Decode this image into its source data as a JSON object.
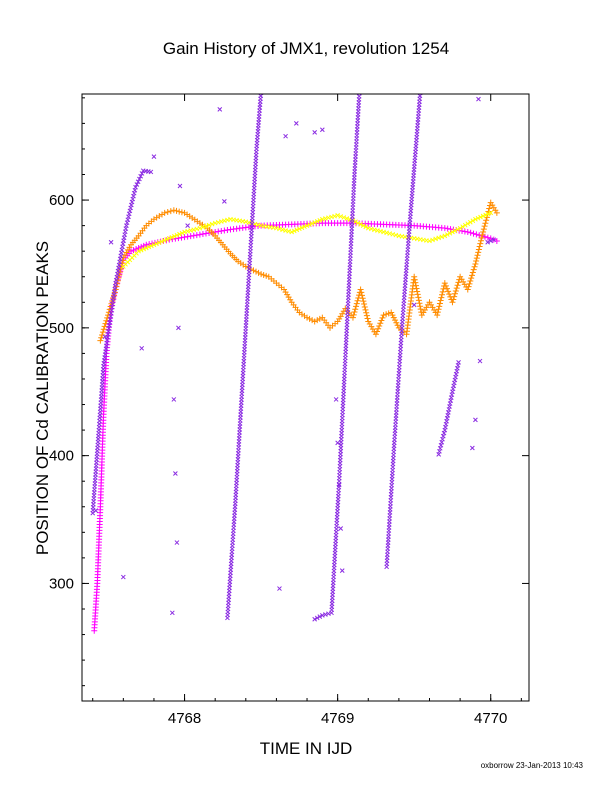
{
  "chart_data": {
    "type": "scatter",
    "title": "Gain History of JMX1, revolution 1254",
    "xlabel": "TIME IN IJD",
    "ylabel": "POSITION OF Cd CALIBRATION PEAKS",
    "xlim": [
      4767.33,
      4770.25
    ],
    "ylim": [
      208,
      683
    ],
    "x_ticks": [
      4768,
      4769,
      4770
    ],
    "x_tick_labels": [
      "4768",
      "4769",
      "4770"
    ],
    "y_ticks": [
      300,
      400,
      500,
      600
    ],
    "y_tick_labels": [
      "300",
      "400",
      "500",
      "600"
    ],
    "grid": false,
    "legend": "none",
    "footer": "oxborrow 23-Jan-2013 10:43",
    "series": [
      {
        "color": "#ff00ff",
        "marker": "+",
        "segments": [
          [
            [
              4767.41,
              263
            ],
            [
              4767.43,
              300
            ],
            [
              4767.45,
              360
            ],
            [
              4767.47,
              430
            ],
            [
              4767.49,
              480
            ],
            [
              4767.51,
              505
            ],
            [
              4767.53,
              520
            ],
            [
              4767.55,
              530
            ],
            [
              4767.57,
              540
            ],
            [
              4767.6,
              553
            ],
            [
              4767.65,
              560
            ],
            [
              4767.75,
              565
            ],
            [
              4767.9,
              569
            ],
            [
              4768.1,
              573
            ],
            [
              4768.3,
              577
            ],
            [
              4768.5,
              580
            ],
            [
              4768.7,
              581
            ],
            [
              4768.9,
              582
            ],
            [
              4769.1,
              582
            ],
            [
              4769.3,
              581
            ],
            [
              4769.5,
              580
            ],
            [
              4769.7,
              578
            ],
            [
              4769.85,
              575
            ],
            [
              4770.0,
              570
            ],
            [
              4770.04,
              568
            ]
          ]
        ]
      },
      {
        "color": "#ff8c00",
        "marker": "+",
        "segments": [
          [
            [
              4767.45,
              490
            ],
            [
              4767.5,
              510
            ],
            [
              4767.55,
              530
            ],
            [
              4767.6,
              555
            ],
            [
              4767.65,
              565
            ],
            [
              4767.7,
              572
            ],
            [
              4767.75,
              580
            ],
            [
              4767.8,
              585
            ],
            [
              4767.87,
              590
            ],
            [
              4767.93,
              592
            ],
            [
              4768.0,
              590
            ],
            [
              4768.05,
              586
            ],
            [
              4768.1,
              582
            ],
            [
              4768.15,
              578
            ],
            [
              4768.2,
              572
            ],
            [
              4768.25,
              565
            ],
            [
              4768.3,
              558
            ],
            [
              4768.35,
              552
            ],
            [
              4768.4,
              548
            ],
            [
              4768.45,
              545
            ],
            [
              4768.5,
              542
            ],
            [
              4768.55,
              540
            ],
            [
              4768.6,
              535
            ],
            [
              4768.65,
              530
            ],
            [
              4768.7,
              520
            ],
            [
              4768.75,
              512
            ],
            [
              4768.8,
              508
            ],
            [
              4768.85,
              505
            ],
            [
              4768.9,
              508
            ],
            [
              4768.95,
              500
            ],
            [
              4769.0,
              505
            ],
            [
              4769.05,
              515
            ],
            [
              4769.1,
              508
            ],
            [
              4769.15,
              530
            ],
            [
              4769.2,
              505
            ],
            [
              4769.25,
              495
            ],
            [
              4769.3,
              510
            ],
            [
              4769.35,
              512
            ],
            [
              4769.4,
              500
            ],
            [
              4769.45,
              495
            ],
            [
              4769.5,
              540
            ],
            [
              4769.55,
              510
            ],
            [
              4769.6,
              520
            ],
            [
              4769.65,
              510
            ],
            [
              4769.7,
              535
            ],
            [
              4769.75,
              520
            ],
            [
              4769.8,
              540
            ],
            [
              4769.85,
              530
            ],
            [
              4769.9,
              550
            ],
            [
              4769.95,
              575
            ],
            [
              4770.0,
              598
            ],
            [
              4770.04,
              590
            ]
          ]
        ]
      },
      {
        "color": "#ffff00",
        "marker": "x",
        "segments": [
          [
            [
              4767.6,
              548
            ],
            [
              4767.7,
              560
            ],
            [
              4767.8,
              565
            ],
            [
              4767.9,
              570
            ],
            [
              4768.0,
              575
            ],
            [
              4768.1,
              578
            ],
            [
              4768.2,
              582
            ],
            [
              4768.3,
              585
            ],
            [
              4768.4,
              583
            ],
            [
              4768.5,
              580
            ],
            [
              4768.6,
              578
            ],
            [
              4768.7,
              575
            ],
            [
              4768.8,
              580
            ],
            [
              4768.9,
              585
            ],
            [
              4769.0,
              588
            ],
            [
              4769.1,
              584
            ],
            [
              4769.2,
              578
            ],
            [
              4769.3,
              575
            ],
            [
              4769.4,
              572
            ],
            [
              4769.5,
              570
            ],
            [
              4769.6,
              568
            ],
            [
              4769.7,
              572
            ],
            [
              4769.8,
              578
            ],
            [
              4769.9,
              585
            ],
            [
              4770.0,
              590
            ]
          ]
        ]
      },
      {
        "color": "#8a2be2",
        "marker": "x",
        "segments": [
          [
            [
              4767.4,
              355
            ],
            [
              4767.44,
              420
            ],
            [
              4767.47,
              470
            ],
            [
              4767.5,
              495
            ],
            [
              4767.55,
              535
            ],
            [
              4767.62,
              580
            ],
            [
              4767.68,
              610
            ],
            [
              4767.73,
              623
            ],
            [
              4767.78,
              622
            ]
          ],
          [
            [
              4768.28,
              273
            ],
            [
              4768.33,
              360
            ],
            [
              4768.38,
              460
            ],
            [
              4768.43,
              560
            ],
            [
              4768.47,
              640
            ],
            [
              4768.51,
              700
            ]
          ],
          [
            [
              4768.85,
              272
            ],
            [
              4768.9,
              275
            ],
            [
              4768.96,
              277
            ],
            [
              4769.01,
              380
            ],
            [
              4769.06,
              500
            ],
            [
              4769.11,
              620
            ],
            [
              4769.15,
              700
            ]
          ],
          [
            [
              4769.32,
              313
            ],
            [
              4769.37,
              410
            ],
            [
              4769.42,
              500
            ],
            [
              4769.47,
              580
            ],
            [
              4769.51,
              640
            ],
            [
              4769.55,
              700
            ]
          ],
          [
            [
              4769.66,
              401
            ],
            [
              4769.7,
              420
            ],
            [
              4769.75,
              450
            ],
            [
              4769.79,
              473
            ]
          ],
          [
            [
              4769.98,
              567
            ],
            [
              4770.02,
              569
            ]
          ]
        ],
        "points": [
          [
            4767.42,
            357
          ],
          [
            4767.48,
            493
          ],
          [
            4767.52,
            567
          ],
          [
            4767.6,
            305
          ],
          [
            4767.72,
            484
          ],
          [
            4767.8,
            634
          ],
          [
            4767.92,
            277
          ],
          [
            4767.93,
            444
          ],
          [
            4767.94,
            386
          ],
          [
            4767.95,
            332
          ],
          [
            4767.96,
            500
          ],
          [
            4767.97,
            611
          ],
          [
            4768.02,
            580
          ],
          [
            4768.23,
            671
          ],
          [
            4768.26,
            599
          ],
          [
            4768.62,
            296
          ],
          [
            4768.66,
            650
          ],
          [
            4768.73,
            660
          ],
          [
            4768.85,
            653
          ],
          [
            4768.9,
            655
          ],
          [
            4768.99,
            444
          ],
          [
            4769.0,
            410
          ],
          [
            4769.01,
            377
          ],
          [
            4769.02,
            343
          ],
          [
            4769.03,
            310
          ],
          [
            4769.5,
            518
          ],
          [
            4769.88,
            406
          ],
          [
            4769.9,
            428
          ],
          [
            4769.92,
            679
          ],
          [
            4769.93,
            474
          ]
        ]
      }
    ]
  }
}
